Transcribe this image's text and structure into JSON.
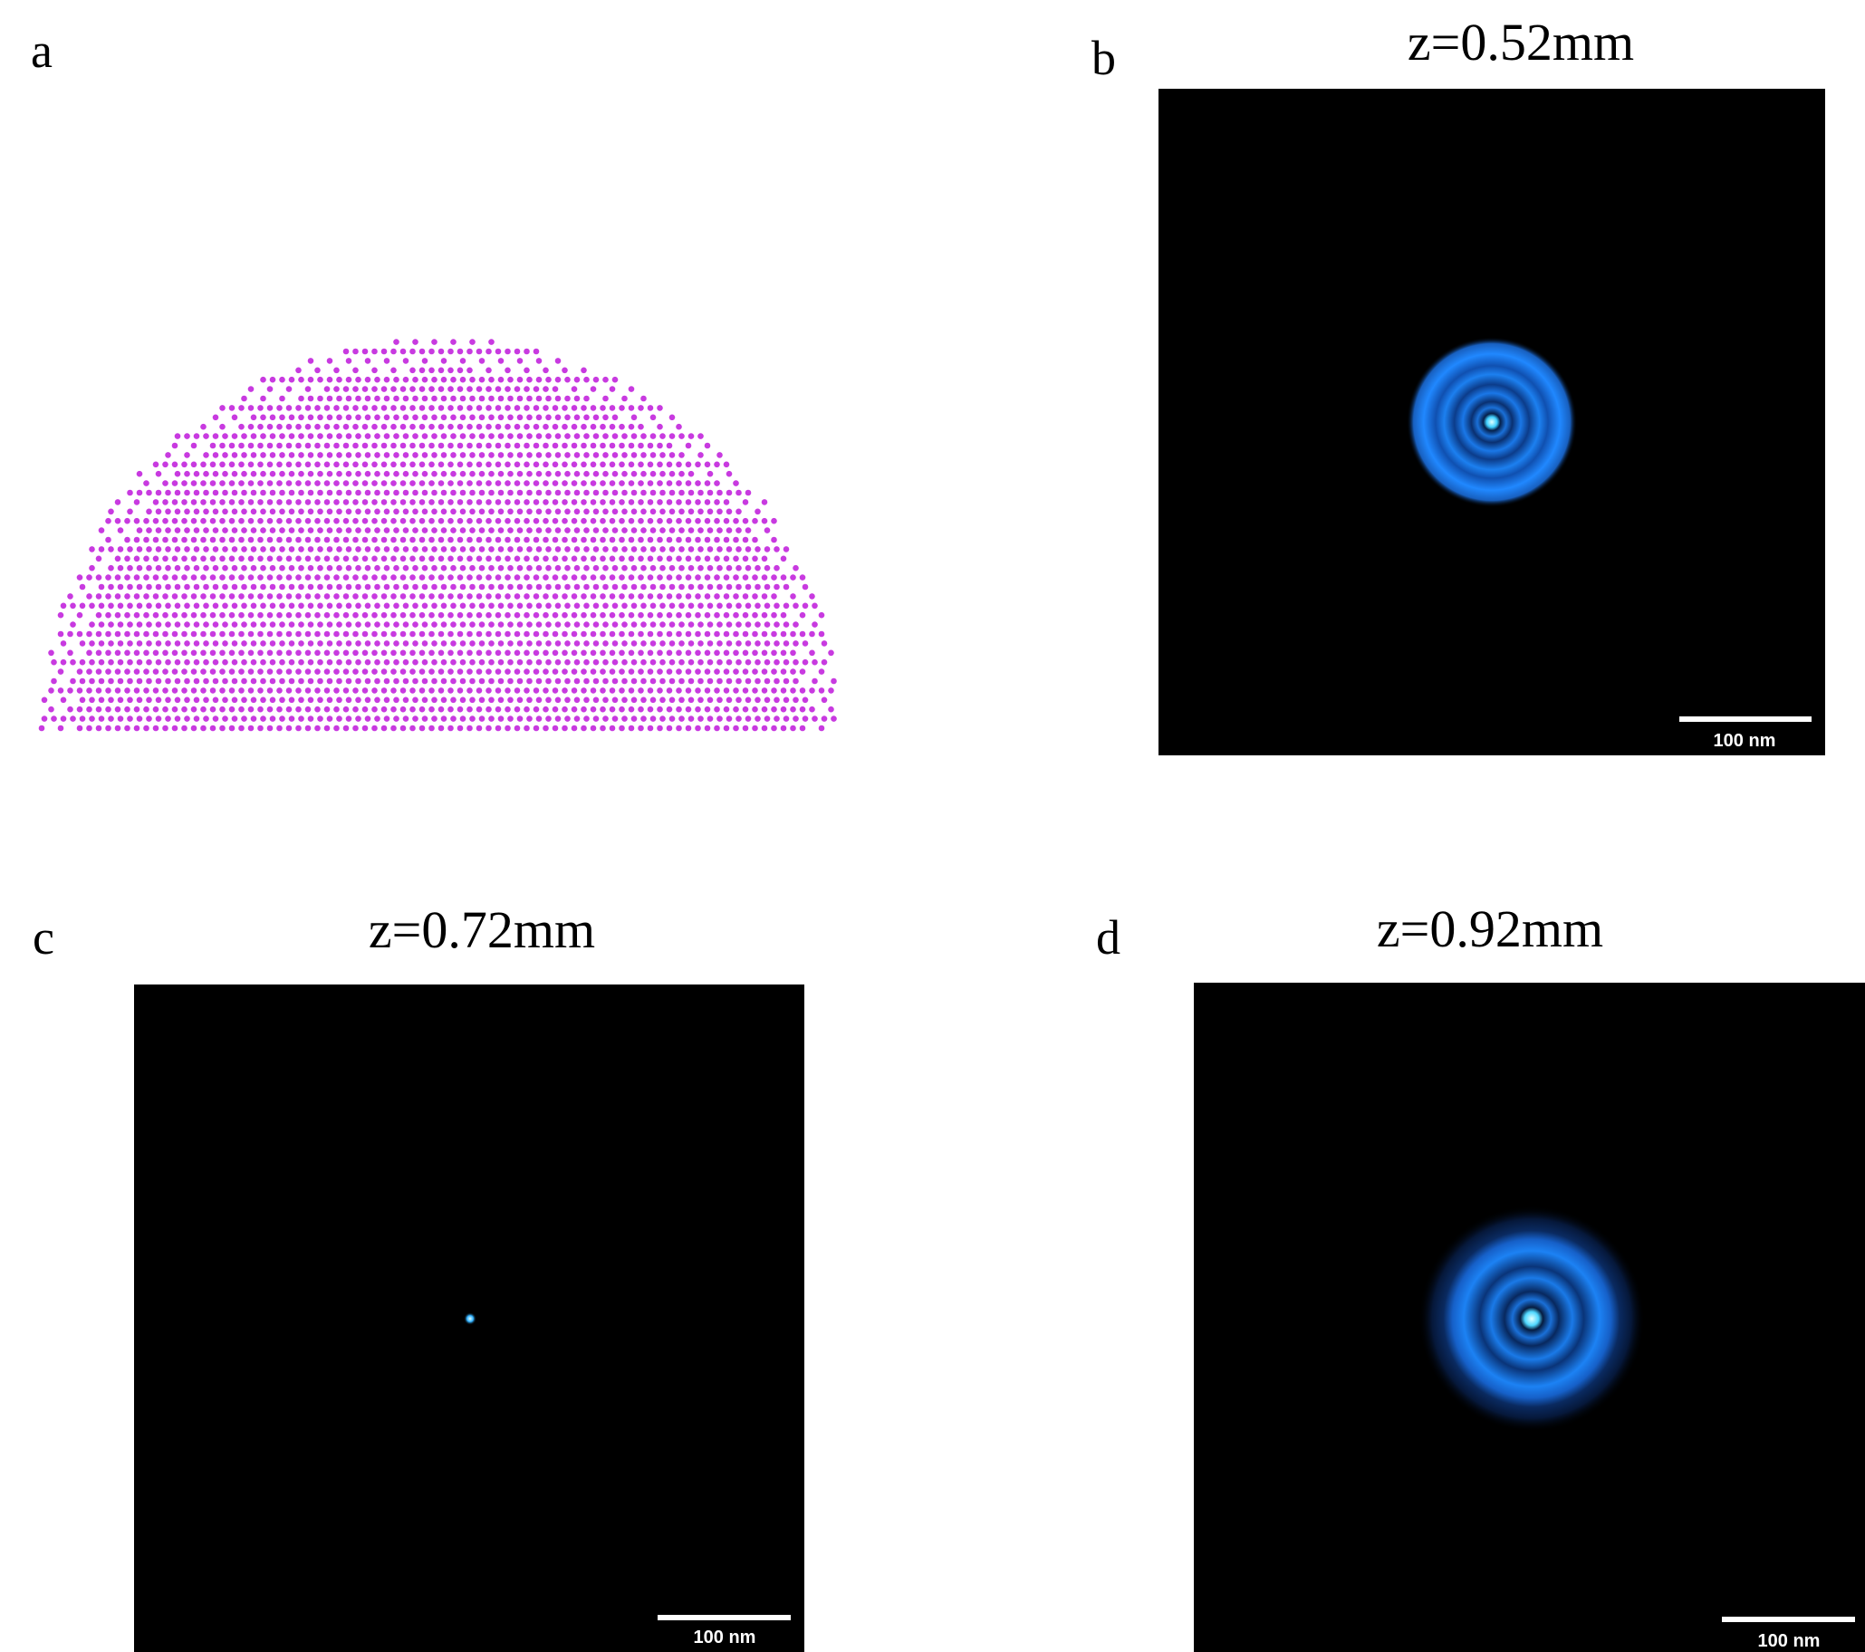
{
  "panels": [
    {
      "label": "a"
    },
    {
      "label": "b",
      "title": "z=0.52mm",
      "scale_bar": "100 nm"
    },
    {
      "label": "c",
      "title": "z=0.72mm",
      "scale_bar": "100 nm"
    },
    {
      "label": "d",
      "title": "z=0.92mm",
      "scale_bar": "100 nm"
    }
  ]
}
